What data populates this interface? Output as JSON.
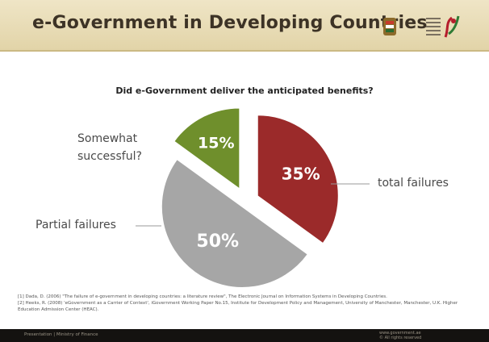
{
  "header": {
    "title": "e-Government in Developing Countries"
  },
  "icons": {
    "emblem": "emblem-icon",
    "logo": "logo-icon"
  },
  "colors": {
    "header_bg": "#e8dcb6",
    "footer_bg": "#141210",
    "slice_failures": "#9b2a2a",
    "slice_partial": "#a6a6a6",
    "slice_somewhat": "#6f8f2c"
  },
  "chart_data": {
    "type": "pie",
    "title": "Did e-Government deliver the anticipated benefits?",
    "slices": [
      {
        "name": "total failures",
        "value": 35,
        "label": "35%",
        "color": "#9b2a2a"
      },
      {
        "name": "Partial failures",
        "value": 50,
        "label": "50%",
        "color": "#a6a6a6"
      },
      {
        "name": "Somewhat successful?",
        "value": 15,
        "label": "15%",
        "color": "#6f8f2c"
      }
    ],
    "legend": "callouts"
  },
  "references": [
    "[1] Dada, D. (2006) \"The failure of e-government in developing countries: a literature review\", The Electronic Journal on Information Systems in Developing Countries.",
    "[2] Heeks, R. (2008) 'eGovernment as a Carrier of Context', iGovernment Working Paper No.15, Institute for Development Policy and Management, University of Manchester, Manchester, U.K. Higher Education Admission Center (HEAC)."
  ],
  "footer": {
    "left": "Presentation | Ministry of Finance",
    "right_line1": "www.government.ae",
    "right_line2": "© All rights reserved"
  }
}
